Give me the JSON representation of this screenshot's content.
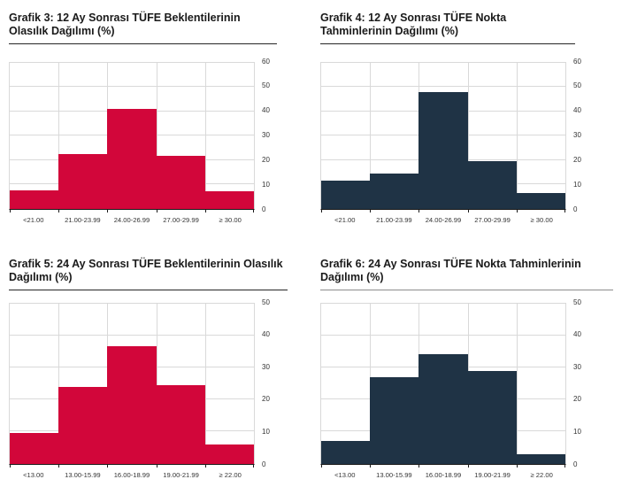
{
  "colors": {
    "red": "#d2063a",
    "navy": "#1f3345",
    "grid": "#d9d9d9",
    "axis": "#1a1a1a",
    "tick_label": "#333333",
    "title": "#1a1a1a"
  },
  "chart_data": [
    {
      "id": "grafik3",
      "type": "bar",
      "title": "Grafik 3: 12 Ay Sonrası TÜFE Beklentilerinin Olasılık Dağılımı (%)",
      "title_rule_color": "#262626",
      "bar_color": "#d2063a",
      "categories": [
        "<21.00",
        "21.00-23.99",
        "24.00-26.99",
        "27.00-29.99",
        "≥ 30.00"
      ],
      "values": [
        7.5,
        22.5,
        41,
        21.5,
        7
      ],
      "xlabel": "",
      "ylabel": "",
      "ylim": [
        0,
        60
      ],
      "yticks": [
        0,
        10,
        20,
        30,
        40,
        50,
        60
      ],
      "grid": true,
      "legend": "none"
    },
    {
      "id": "grafik4",
      "type": "bar",
      "title": "Grafik 4: 12 Ay Sonrası TÜFE Nokta Tahminlerinin Dağılımı (%)",
      "title_rule_color": "#262626",
      "bar_color": "#1f3345",
      "categories": [
        "<21.00",
        "21.00-23.99",
        "24.00-26.99",
        "27.00-29.99",
        "≥ 30.00"
      ],
      "values": [
        11.5,
        14.5,
        48,
        19.5,
        6.5
      ],
      "xlabel": "",
      "ylabel": "",
      "ylim": [
        0,
        60
      ],
      "yticks": [
        0,
        10,
        20,
        30,
        40,
        50,
        60
      ],
      "grid": true,
      "legend": "none"
    },
    {
      "id": "grafik5",
      "type": "bar",
      "title": "Grafik 5: 24 Ay Sonrası TÜFE Beklentilerinin Olasılık Dağılımı (%)",
      "title_rule_color": "#262626",
      "bar_color": "#d2063a",
      "categories": [
        "<13.00",
        "13.00-15.99",
        "16.00-18.99",
        "19.00-21.99",
        "≥ 22.00"
      ],
      "values": [
        9.5,
        24,
        36.5,
        24.5,
        6
      ],
      "xlabel": "",
      "ylabel": "",
      "ylim": [
        0,
        50
      ],
      "yticks": [
        0,
        10,
        20,
        30,
        40,
        50
      ],
      "grid": true,
      "legend": "none"
    },
    {
      "id": "grafik6",
      "type": "bar",
      "title": "Grafik 6: 24 Ay Sonrası TÜFE Nokta Tahminlerinin Dağılımı (%)",
      "title_rule_color": "#8c8c8c",
      "bar_color": "#1f3345",
      "categories": [
        "<13.00",
        "13.00-15.99",
        "16.00-18.99",
        "19.00-21.99",
        "≥ 22.00"
      ],
      "values": [
        7,
        27,
        34,
        29,
        3
      ],
      "xlabel": "",
      "ylabel": "",
      "ylim": [
        0,
        50
      ],
      "yticks": [
        0,
        10,
        20,
        30,
        40,
        50
      ],
      "grid": true,
      "legend": "none"
    }
  ]
}
